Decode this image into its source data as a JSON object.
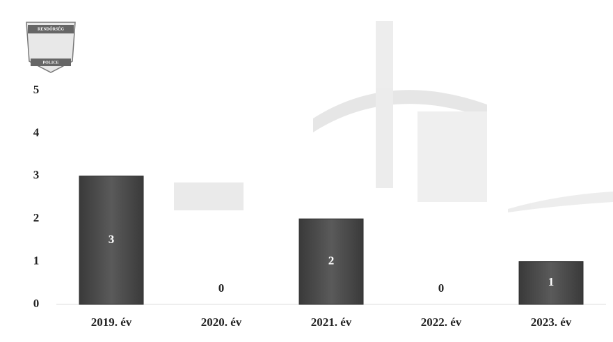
{
  "logo": {
    "top": "RENDŐRSÉG",
    "bottom": "POLICE"
  },
  "chart_data": {
    "type": "bar",
    "categories": [
      "2019. év",
      "2020. év",
      "2021. év",
      "2022. év",
      "2023. év"
    ],
    "values": [
      3,
      0,
      2,
      0,
      1
    ],
    "color": "#4f4f4f",
    "ylim": [
      0,
      5
    ],
    "yticks": [
      0,
      1,
      2,
      3,
      4,
      5
    ],
    "grid": false
  }
}
